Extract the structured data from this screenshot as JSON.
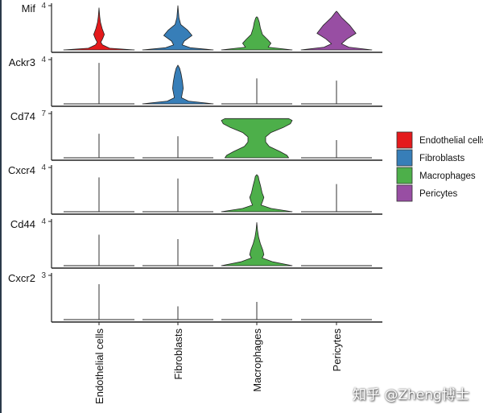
{
  "chart_data": {
    "type": "violin",
    "title": "",
    "xlabel": "",
    "ylabel": "",
    "categories": [
      "Endothelial cells",
      "Fibroblasts",
      "Macrophages",
      "Pericytes"
    ],
    "colors": [
      "#E41A1C",
      "#377EB8",
      "#4DAF4A",
      "#984EA3"
    ],
    "legend": {
      "placement": "right",
      "entries": [
        "Endothelial cells",
        "Fibroblasts",
        "Macrophages",
        "Pericytes"
      ]
    },
    "genes": [
      {
        "name": "Mif",
        "ymax_tick": 4,
        "ymax": 4.1,
        "violins": [
          {
            "profile": [
              [
                0,
                1
              ],
              [
                0.15,
                0.3
              ],
              [
                0.45,
                0.1
              ],
              [
                0.7,
                0.05
              ],
              [
                1.0,
                0.1
              ],
              [
                1.4,
                0.15
              ],
              [
                1.9,
                0.09
              ],
              [
                2.5,
                0.04
              ],
              [
                3.0,
                0.02
              ],
              [
                3.8,
                0
              ]
            ]
          },
          {
            "profile": [
              [
                0,
                1
              ],
              [
                0.2,
                0.35
              ],
              [
                0.45,
                0.12
              ],
              [
                0.8,
                0.18
              ],
              [
                1.3,
                0.4
              ],
              [
                1.8,
                0.27
              ],
              [
                2.3,
                0.08
              ],
              [
                2.9,
                0.03
              ],
              [
                4.0,
                0
              ]
            ]
          },
          {
            "profile": [
              [
                0,
                1
              ],
              [
                0.25,
                0.32
              ],
              [
                0.6,
                0.4
              ],
              [
                0.95,
                0.3
              ],
              [
                1.4,
                0.16
              ],
              [
                2.0,
                0.1
              ],
              [
                2.5,
                0.07
              ],
              [
                2.9,
                0.03
              ],
              [
                3.0,
                0
              ]
            ]
          },
          {
            "profile": [
              [
                0,
                1
              ],
              [
                0.25,
                0.35
              ],
              [
                0.55,
                0.14
              ],
              [
                1.0,
                0.3
              ],
              [
                1.5,
                0.55
              ],
              [
                2.2,
                0.38
              ],
              [
                2.9,
                0.15
              ],
              [
                3.4,
                0.03
              ],
              [
                3.5,
                0
              ]
            ]
          }
        ]
      },
      {
        "name": "Ackr3",
        "ymax_tick": 4,
        "ymax": 4.1,
        "violins": [
          {
            "line": 3.7
          },
          {
            "profile": [
              [
                0,
                1
              ],
              [
                0.25,
                0.3
              ],
              [
                0.55,
                0.1
              ],
              [
                0.9,
                0.12
              ],
              [
                1.4,
                0.15
              ],
              [
                2.0,
                0.13
              ],
              [
                2.7,
                0.09
              ],
              [
                3.2,
                0.05
              ],
              [
                3.5,
                0
              ]
            ]
          },
          {
            "line": 2.3
          },
          {
            "line": 2.1
          }
        ]
      },
      {
        "name": "Cd74",
        "ymax_tick": 7,
        "ymax": 7.1,
        "violins": [
          {
            "line": 3.8
          },
          {
            "line": 3.4
          },
          {
            "profile": [
              [
                0,
                0.9
              ],
              [
                0.4,
                0.85
              ],
              [
                1.0,
                0.65
              ],
              [
                1.8,
                0.35
              ],
              [
                2.5,
                0.25
              ],
              [
                3.3,
                0.25
              ],
              [
                4.0,
                0.4
              ],
              [
                4.8,
                0.75
              ],
              [
                5.4,
                0.95
              ],
              [
                5.9,
                1
              ],
              [
                6.2,
                0.9
              ]
            ]
          },
          {
            "line": 2.8
          }
        ]
      },
      {
        "name": "Cxcr4",
        "ymax_tick": 4,
        "ymax": 4.1,
        "violins": [
          {
            "line": 3.1
          },
          {
            "line": 3.0
          },
          {
            "profile": [
              [
                0,
                1
              ],
              [
                0.3,
                0.4
              ],
              [
                0.6,
                0.12
              ],
              [
                0.9,
                0.16
              ],
              [
                1.3,
                0.2
              ],
              [
                1.7,
                0.15
              ],
              [
                2.3,
                0.11
              ],
              [
                2.9,
                0.06
              ],
              [
                3.2,
                0.04
              ],
              [
                3.35,
                0
              ]
            ]
          },
          {
            "line": 2.5
          }
        ]
      },
      {
        "name": "Cd44",
        "ymax_tick": 4,
        "ymax": 4.1,
        "violins": [
          {
            "line": 2.8
          },
          {
            "line": 2.4
          },
          {
            "profile": [
              [
                0,
                1
              ],
              [
                0.35,
                0.45
              ],
              [
                0.7,
                0.15
              ],
              [
                1.0,
                0.2
              ],
              [
                1.4,
                0.17
              ],
              [
                2.0,
                0.1
              ],
              [
                2.6,
                0.05
              ],
              [
                3.2,
                0.02
              ],
              [
                3.9,
                0
              ]
            ]
          },
          {
            "line": 0
          }
        ]
      },
      {
        "name": "Cxcr2",
        "ymax_tick": 3,
        "ymax": 3.1,
        "violins": [
          {
            "line": 2.4
          },
          {
            "line": 0.9
          },
          {
            "line": 1.2
          },
          {
            "line": 0
          }
        ]
      }
    ]
  },
  "watermark": "知乎 @Zheng博士"
}
